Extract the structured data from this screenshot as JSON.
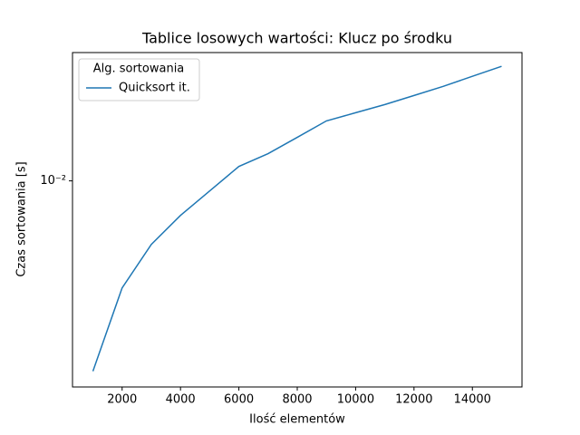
{
  "chart_data": {
    "type": "line",
    "title": "Tablice losowych wartości: Klucz po środku",
    "x_label": "Ilość elementów",
    "y_label": "Czas sortowania [s]",
    "legend_title": "Alg. sortowania",
    "legend_position": "upper left",
    "y_scale": "log",
    "x": [
      1000,
      2000,
      3000,
      4000,
      5000,
      6000,
      7000,
      8000,
      9000,
      10000,
      11000,
      12000,
      13000,
      14000,
      15000
    ],
    "series": [
      {
        "name": "Quicksort it.",
        "color": "#1f77b4",
        "values": [
          0.00436,
          0.00627,
          0.00758,
          0.0086,
          0.00957,
          0.01065,
          0.01126,
          0.01209,
          0.01299,
          0.01346,
          0.01395,
          0.01451,
          0.0151,
          0.01578,
          0.01648
        ]
      }
    ],
    "xlim": [
      300,
      15700
    ],
    "xticks": [
      2000,
      4000,
      6000,
      8000,
      10000,
      12000,
      14000
    ],
    "ylim": [
      0.00407,
      0.0175
    ],
    "yticks": [
      {
        "value": 0.01,
        "label": "10⁻²"
      }
    ]
  }
}
